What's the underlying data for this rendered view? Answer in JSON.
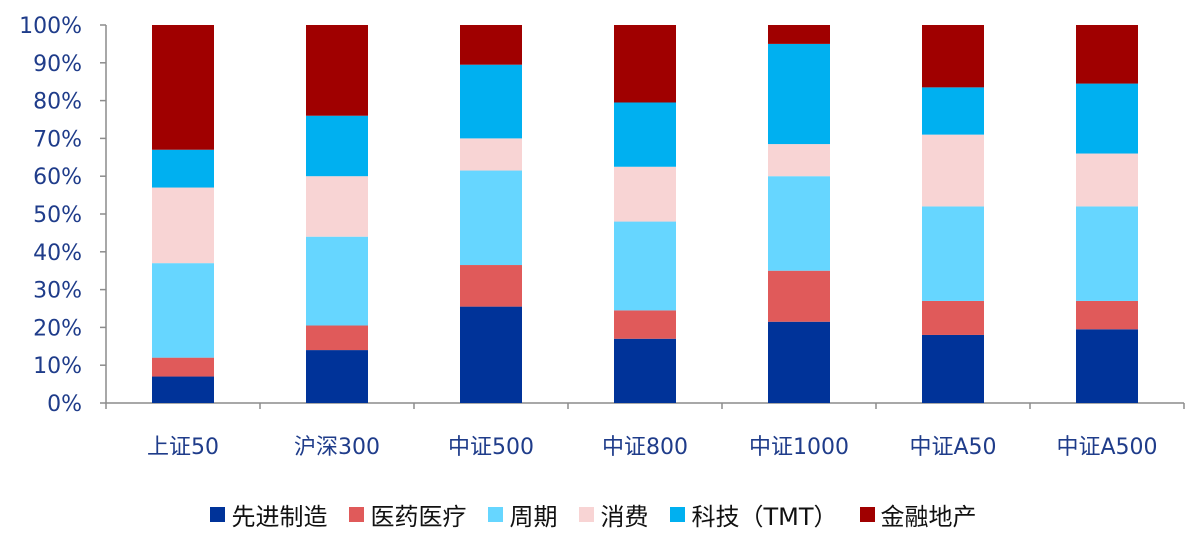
{
  "chart_data": {
    "type": "bar",
    "stacked": true,
    "percent": true,
    "categories": [
      "上证50",
      "沪深300",
      "中证500",
      "中证800",
      "中证1000",
      "中证A50",
      "中证A500"
    ],
    "series": [
      {
        "name": "先进制造",
        "color": "#003399",
        "values": [
          7,
          14,
          25.5,
          17,
          21.5,
          18,
          19.5
        ]
      },
      {
        "name": "医药医疗",
        "color": "#e05a5a",
        "values": [
          5,
          6.5,
          11,
          7.5,
          13.5,
          9,
          7.5
        ]
      },
      {
        "name": "周期",
        "color": "#66d6ff",
        "values": [
          25,
          23.5,
          25,
          23.5,
          25,
          25,
          25
        ]
      },
      {
        "name": "消费",
        "color": "#f8d4d4",
        "values": [
          20,
          16,
          8.5,
          14.5,
          8.5,
          19,
          14
        ]
      },
      {
        "name": "科技（TMT）",
        "color": "#00b0f0",
        "values": [
          10,
          16,
          19.5,
          17,
          26.5,
          12.5,
          18.5
        ]
      },
      {
        "name": "金融地产",
        "color": "#a00000",
        "values": [
          33,
          24,
          10.5,
          20.5,
          5,
          16.5,
          15.5
        ]
      }
    ],
    "ylim": [
      0,
      100
    ],
    "yticks": [
      "0%",
      "10%",
      "20%",
      "30%",
      "40%",
      "50%",
      "60%",
      "70%",
      "80%",
      "90%",
      "100%"
    ],
    "grid": false,
    "legend_position": "bottom"
  }
}
